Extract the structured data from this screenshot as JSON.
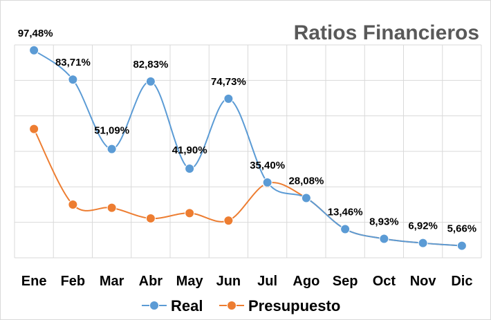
{
  "chart_data": {
    "type": "line",
    "title": "Ratios Financieros",
    "categories": [
      "Ene",
      "Feb",
      "Mar",
      "Abr",
      "May",
      "Jun",
      "Jul",
      "Ago",
      "Sep",
      "Oct",
      "Nov",
      "Dic"
    ],
    "ylim": [
      0,
      100
    ],
    "grid": true,
    "smooth": true,
    "legend_position": "bottom",
    "series": [
      {
        "name": "Real",
        "color": "#5b9bd5",
        "values": [
          97.48,
          83.71,
          51.09,
          82.83,
          41.9,
          74.73,
          35.4,
          28.08,
          13.46,
          8.93,
          6.92,
          5.66
        ],
        "labels": [
          "97,48%",
          "83,71%",
          "51,09%",
          "82,83%",
          "41,90%",
          "74,73%",
          "35,40%",
          "28,08%",
          "13,46%",
          "8,93%",
          "6,92%",
          "5,66%"
        ]
      },
      {
        "name": "Presupuesto",
        "color": "#ed7d31",
        "values": [
          60.5,
          25.0,
          23.5,
          18.5,
          21.0,
          17.5,
          35.0,
          28.08,
          13.46,
          8.93,
          6.92,
          5.66
        ]
      }
    ]
  }
}
